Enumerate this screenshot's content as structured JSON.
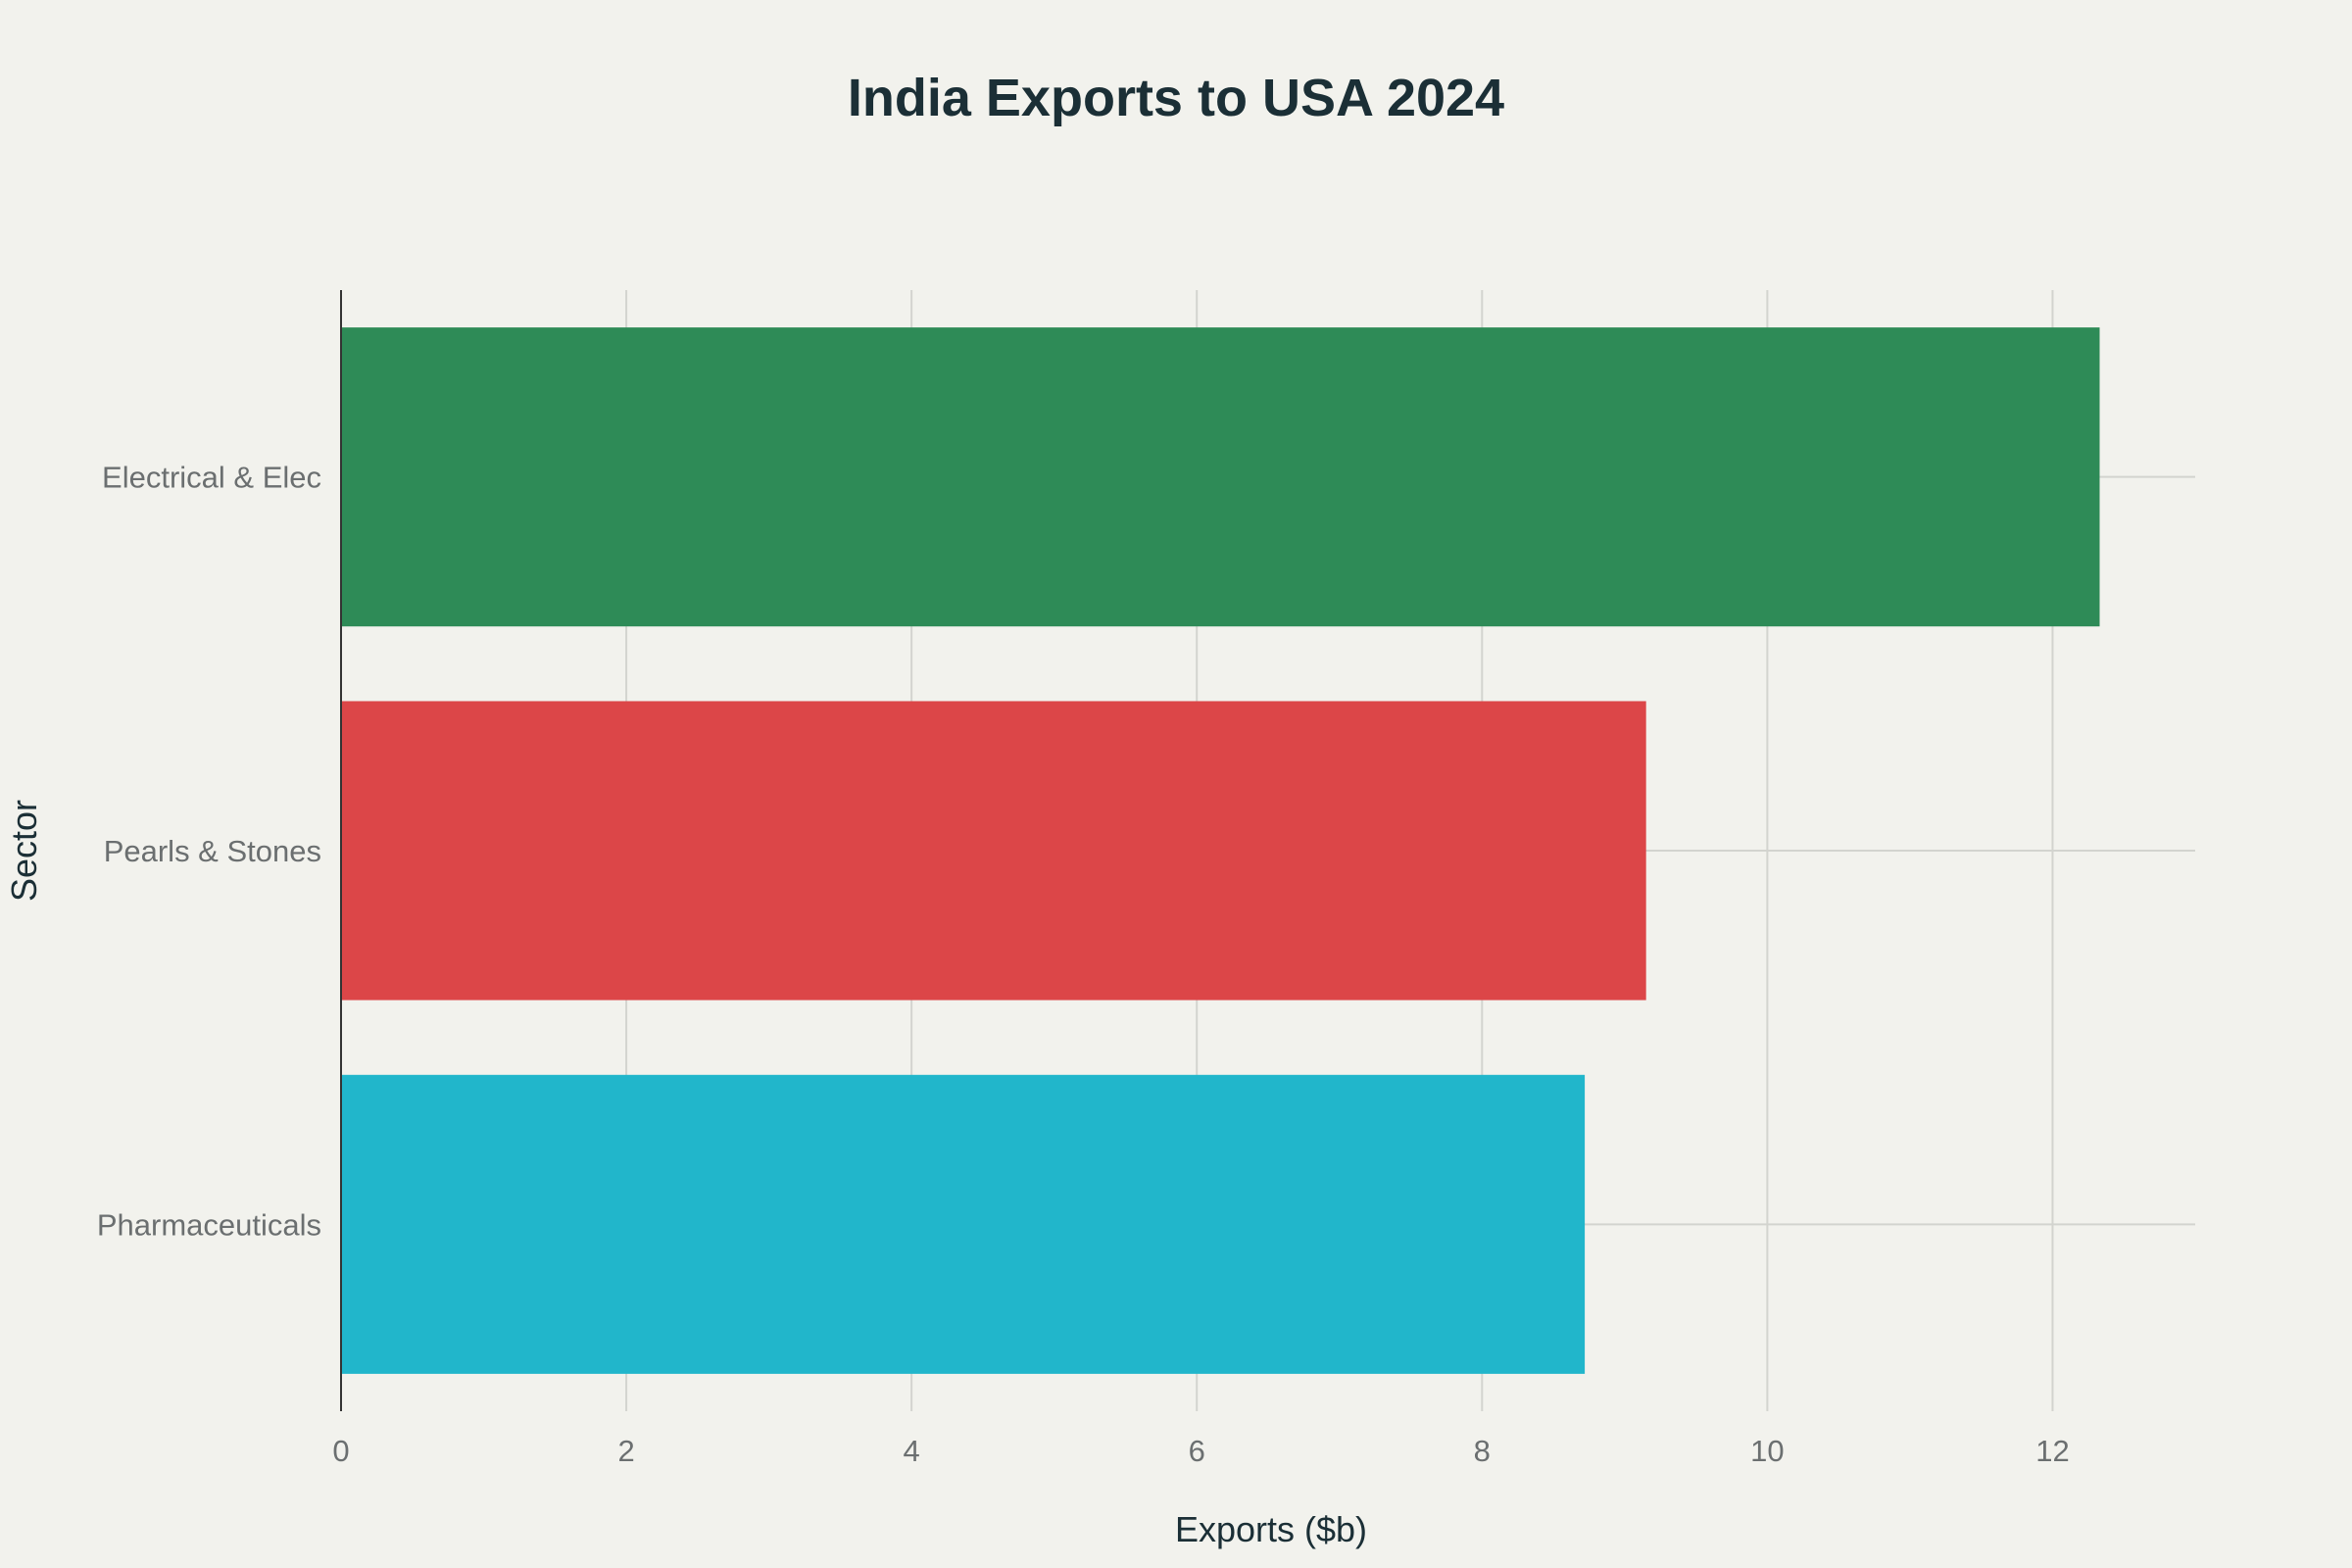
{
  "chart_data": {
    "type": "bar",
    "orientation": "horizontal",
    "title": "India Exports to USA 2024",
    "xlabel": "Exports ($b)",
    "ylabel": "Sector",
    "categories": [
      "Electrical & Elec",
      "Pearls & Stones",
      "Pharmaceuticals"
    ],
    "values": [
      12.33,
      9.15,
      8.72
    ],
    "colors": [
      "#2e8b57",
      "#dc4648",
      "#21b6cb"
    ],
    "xlim": [
      0,
      13
    ],
    "xticks": [
      0,
      2,
      4,
      6,
      8,
      10,
      12
    ],
    "grid": true,
    "legend": "none"
  }
}
